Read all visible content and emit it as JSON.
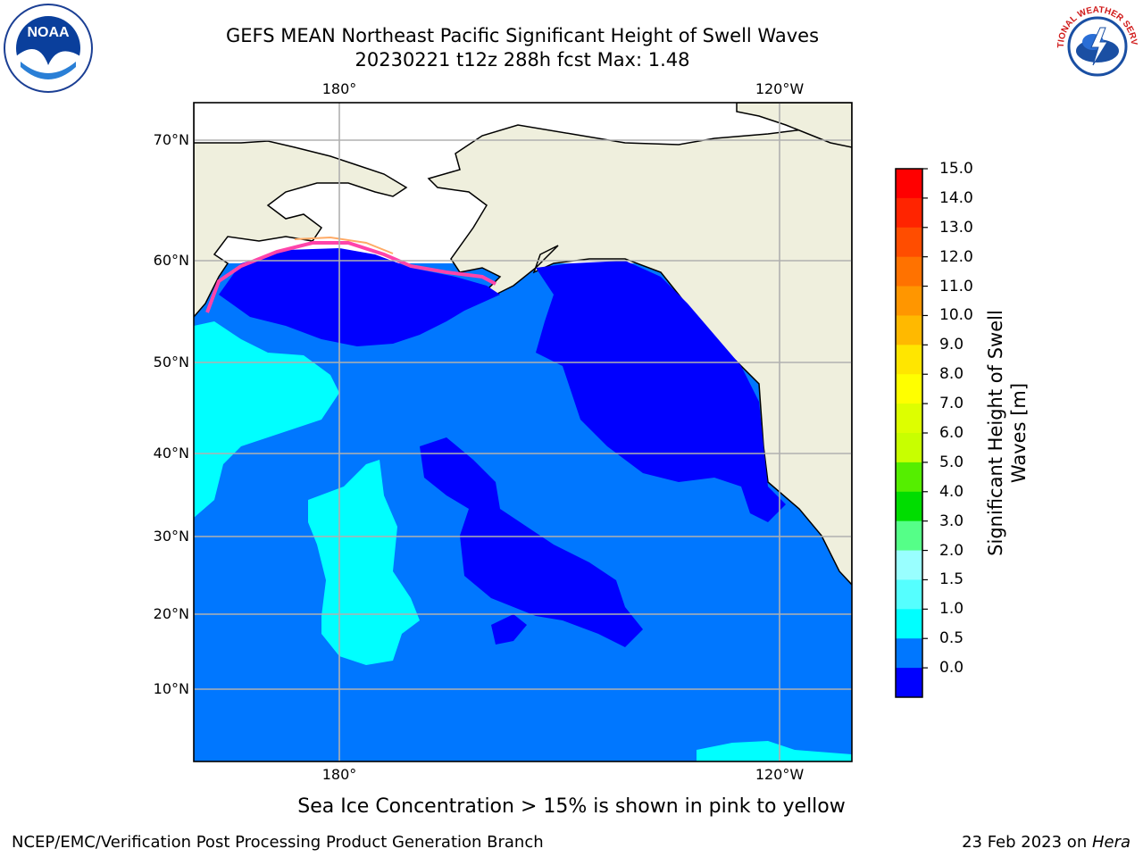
{
  "title": {
    "line1": "GEFS MEAN Northeast Pacific Significant Height of Swell Waves",
    "line2": "20230221 t12z 288h fcst   Max: 1.48"
  },
  "logos": {
    "left": {
      "text": "NOAA",
      "icon": "noaa-logo"
    },
    "right": {
      "icon": "national-weather-service-logo",
      "text": "NATIONAL WEATHER SERVICE"
    }
  },
  "map": {
    "lat_labels": [
      "70°N",
      "60°N",
      "50°N",
      "40°N",
      "30°N",
      "20°N",
      "10°N"
    ],
    "lon_labels_top": [
      "180°",
      "120°W"
    ],
    "lon_labels_bottom": [
      "180°",
      "120°W"
    ],
    "colors": {
      "land": "#efefdd",
      "ice_free_sea": "#ffffff",
      "gridline": "#b0b0b0",
      "band_0_0.5": "#0000ff",
      "band_0.5_1": "#0077ff",
      "band_1_1.5": "#00ffff"
    }
  },
  "colorbar": {
    "title": "Significant Height of Swell Waves [m]",
    "ticks": [
      "15.0",
      "14.0",
      "13.0",
      "12.0",
      "11.0",
      "10.0",
      "9.0",
      "8.0",
      "7.0",
      "6.0",
      "5.0",
      "4.0",
      "3.0",
      "2.0",
      "1.5",
      "1.0",
      "0.5",
      "0.0"
    ],
    "colors_top_to_bottom": [
      "#ff0000",
      "#ff2400",
      "#ff4d00",
      "#ff7200",
      "#ff9600",
      "#ffb900",
      "#ffe600",
      "#ffff00",
      "#ddff00",
      "#c8ff00",
      "#55ee00",
      "#00dd00",
      "#55ff88",
      "#99ffff",
      "#55ffff",
      "#00ffff",
      "#0077ff",
      "#0000ff"
    ]
  },
  "footnote": "Sea Ice Concentration > 15% is shown in pink to yellow",
  "credit": "NCEP/EMC/Verification Post Processing Product Generation Branch",
  "date_prefix": "23 Feb 2023 on ",
  "date_host": "Hera"
}
